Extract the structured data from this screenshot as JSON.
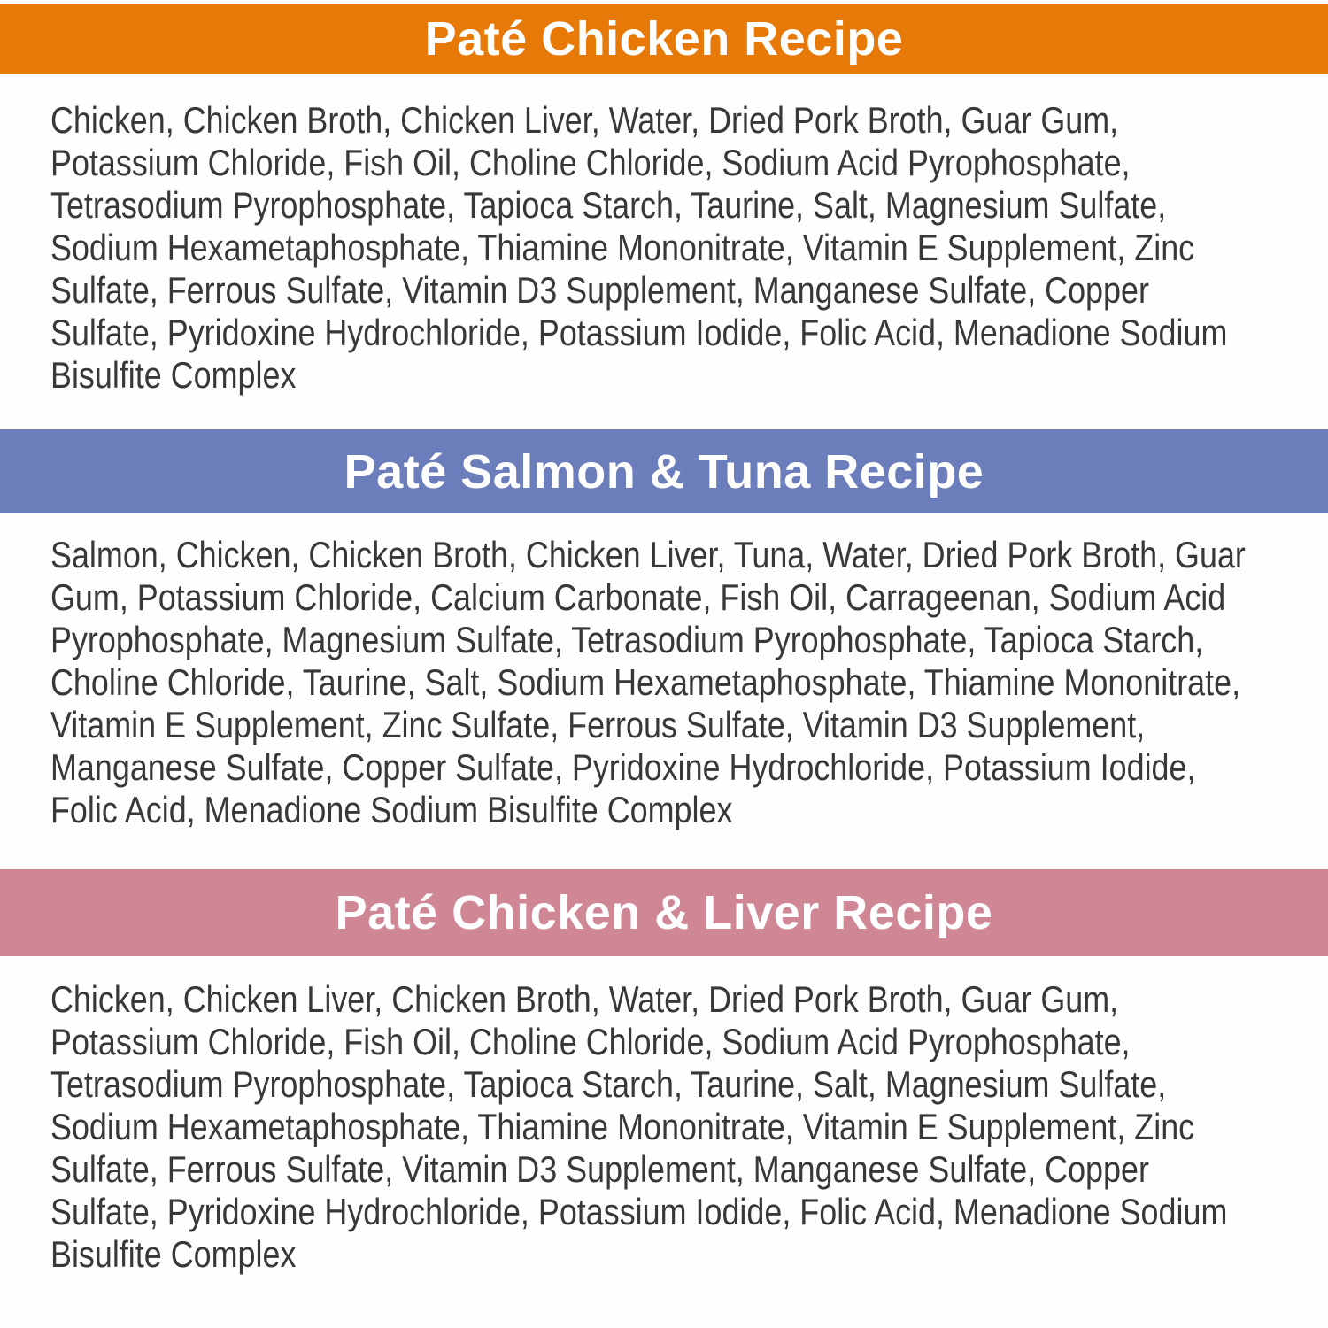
{
  "label": {
    "background": "#fefefe",
    "ingredients_text_color": "#383838",
    "title_text_color": "#ffffff",
    "sections": [
      {
        "title": "Paté Chicken Recipe",
        "bar_color": "#e67908",
        "ingredients": "Chicken, Chicken Broth, Chicken Liver, Water, Dried Pork Broth, Guar Gum,\nPotassium Chloride, Fish Oil, Choline Chloride, Sodium Acid Pyrophosphate,\nTetrasodium Pyrophosphate, Tapioca Starch, Taurine, Salt, Magnesium Sulfate,\nSodium Hexametaphosphate, Thiamine Mononitrate, Vitamin E Supplement, Zinc\nSulfate, Ferrous Sulfate, Vitamin D3 Supplement, Manganese Sulfate, Copper\nSulfate, Pyridoxine Hydrochloride, Potassium Iodide, Folic Acid, Menadione Sodium\nBisulfite Complex"
      },
      {
        "title": "Paté Salmon & Tuna Recipe",
        "bar_color": "#6b7dba",
        "ingredients": "Salmon, Chicken, Chicken Broth, Chicken Liver, Tuna, Water, Dried Pork Broth, Guar\nGum, Potassium Chloride, Calcium Carbonate, Fish Oil, Carrageenan, Sodium Acid\nPyrophosphate, Magnesium Sulfate, Tetrasodium Pyrophosphate, Tapioca Starch,\nCholine Chloride, Taurine, Salt, Sodium Hexametaphosphate, Thiamine Mononitrate,\nVitamin E Supplement, Zinc Sulfate, Ferrous Sulfate, Vitamin D3 Supplement,\nManganese Sulfate, Copper Sulfate, Pyridoxine Hydrochloride, Potassium Iodide,\nFolic Acid, Menadione Sodium Bisulfite Complex"
      },
      {
        "title": "Paté Chicken & Liver Recipe",
        "bar_color": "#cf8695",
        "ingredients": "Chicken, Chicken Liver, Chicken Broth, Water, Dried Pork Broth, Guar Gum,\nPotassium Chloride, Fish Oil, Choline Chloride, Sodium Acid Pyrophosphate,\nTetrasodium Pyrophosphate, Tapioca Starch, Taurine, Salt, Magnesium Sulfate,\nSodium Hexametaphosphate, Thiamine Mononitrate, Vitamin E Supplement, Zinc\nSulfate, Ferrous Sulfate, Vitamin D3 Supplement, Manganese Sulfate, Copper\nSulfate, Pyridoxine Hydrochloride, Potassium Iodide, Folic Acid, Menadione Sodium\nBisulfite Complex"
      }
    ]
  }
}
